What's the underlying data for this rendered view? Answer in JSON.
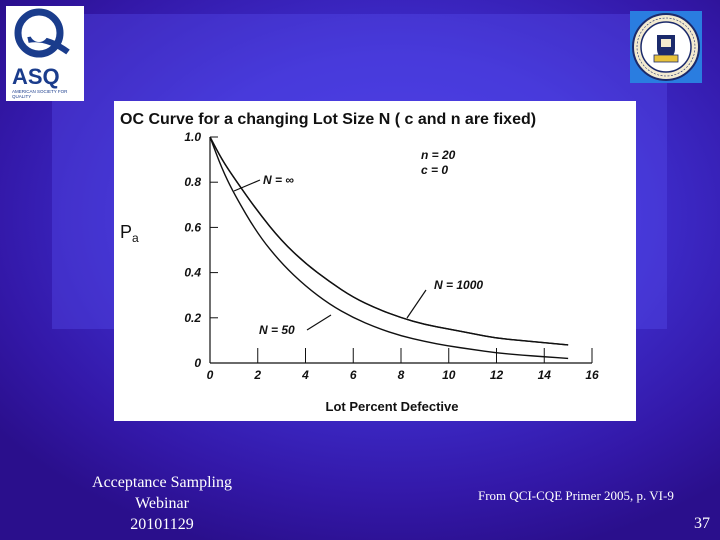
{
  "logo": {
    "brand": "ASQ",
    "tagline": "AMERICAN SOCIETY FOR QUALITY"
  },
  "colors": {
    "background": "#3a1fb0",
    "chart_bg": "#ffffff",
    "footer_text": "#ffffff"
  },
  "footer": {
    "line1": "Acceptance Sampling",
    "line2": "Webinar",
    "line3": "20101129",
    "source": "From QCI-CQE Primer 2005, p. VI-9",
    "page_number": "37"
  },
  "chart_data": {
    "type": "line",
    "title": "OC Curve for a changing Lot Size N ( c and n are fixed)",
    "xlabel": "Lot Percent Defective",
    "ylabel": "P",
    "ylabel_subscript": "a",
    "xlim": [
      0,
      16
    ],
    "ylim": [
      0,
      1.0
    ],
    "x_ticks": [
      "0",
      "2",
      "4",
      "6",
      "8",
      "10",
      "12",
      "14",
      "16"
    ],
    "y_ticks": [
      "0",
      "0.2",
      "0.4",
      "0.6",
      "0.8",
      "1.0"
    ],
    "params": {
      "n": "n = 20",
      "c": "c = 0"
    },
    "annotations": [
      {
        "text": "N = ∞",
        "target_series": "N = ∞"
      },
      {
        "text": "N = 1000",
        "target_series": "N = 1000"
      },
      {
        "text": "N = 50",
        "target_series": "N = 50"
      }
    ],
    "grid": false,
    "x": [
      0,
      0.5,
      1,
      2,
      3,
      4,
      5,
      6,
      7,
      8,
      9,
      10,
      11,
      12,
      13,
      14,
      15
    ],
    "series": [
      {
        "name": "N = ∞",
        "values": [
          1.0,
          0.9,
          0.82,
          0.67,
          0.54,
          0.44,
          0.36,
          0.29,
          0.24,
          0.2,
          0.17,
          0.15,
          0.13,
          0.11,
          0.1,
          0.09,
          0.08
        ]
      },
      {
        "name": "N = 1000",
        "values": [
          1.0,
          0.9,
          0.82,
          0.67,
          0.54,
          0.44,
          0.36,
          0.29,
          0.24,
          0.2,
          0.17,
          0.15,
          0.13,
          0.11,
          0.1,
          0.09,
          0.08
        ]
      },
      {
        "name": "N = 50",
        "values": [
          1.0,
          0.86,
          0.75,
          0.57,
          0.44,
          0.34,
          0.26,
          0.2,
          0.155,
          0.12,
          0.095,
          0.075,
          0.06,
          0.045,
          0.035,
          0.028,
          0.02
        ]
      }
    ]
  }
}
